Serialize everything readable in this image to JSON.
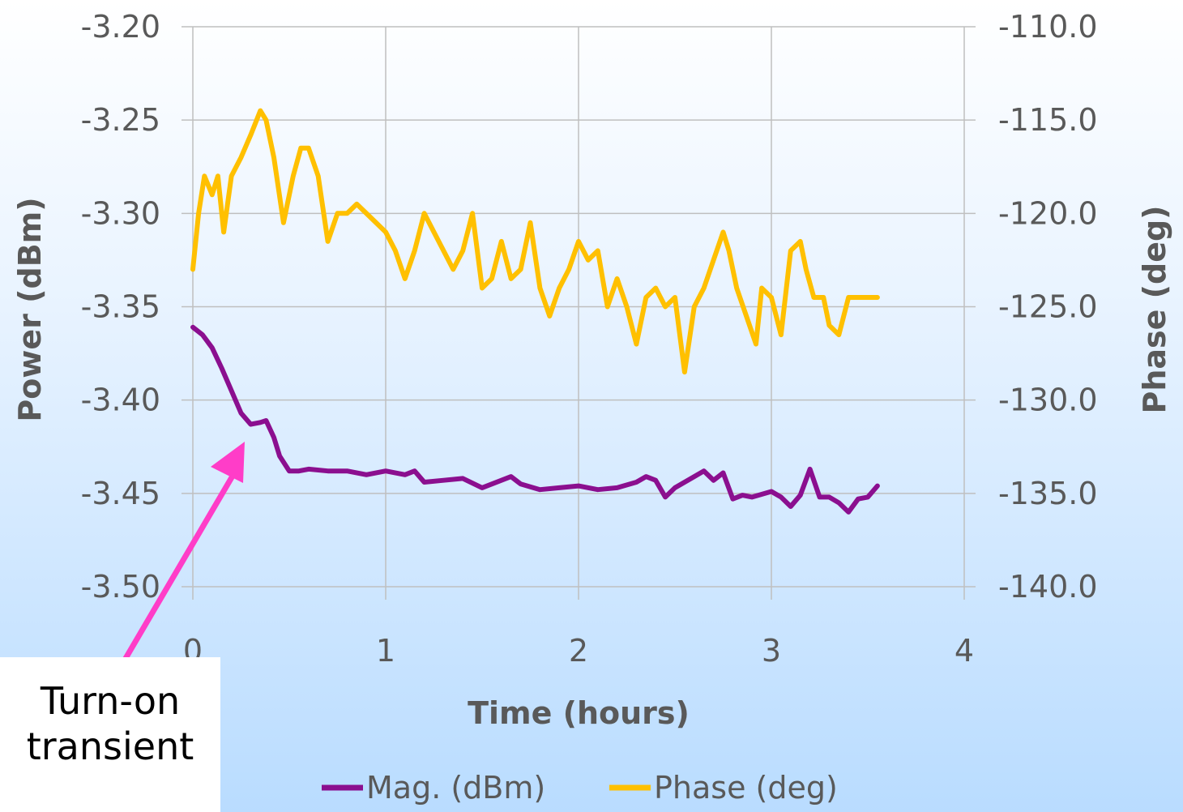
{
  "chart_data": {
    "type": "line",
    "xlabel": "Time (hours)",
    "ylabel_left": "Power (dBm)",
    "ylabel_right": "Phase (deg)",
    "xlim": [
      0,
      4
    ],
    "ylim_left": [
      -3.5,
      -3.2
    ],
    "ylim_right": [
      -140,
      -110
    ],
    "x_ticks": [
      "0",
      "1",
      "2",
      "3",
      "4"
    ],
    "y_left_ticks": [
      "-3.20",
      "-3.25",
      "-3.30",
      "-3.35",
      "-3.40",
      "-3.45",
      "-3.50"
    ],
    "y_right_ticks": [
      "-110.0",
      "-115.0",
      "-120.0",
      "-125.0",
      "-130.0",
      "-135.0",
      "-140.0"
    ],
    "grid": true,
    "legend_position": "bottom",
    "series": [
      {
        "name": "Mag. (dBm)",
        "axis": "left",
        "color": "#8b0f8f",
        "x": [
          0,
          0.05,
          0.1,
          0.15,
          0.2,
          0.25,
          0.3,
          0.35,
          0.38,
          0.42,
          0.45,
          0.5,
          0.55,
          0.6,
          0.7,
          0.8,
          0.9,
          1.0,
          1.1,
          1.15,
          1.2,
          1.3,
          1.4,
          1.5,
          1.6,
          1.65,
          1.7,
          1.8,
          1.9,
          2.0,
          2.1,
          2.2,
          2.3,
          2.35,
          2.4,
          2.45,
          2.5,
          2.6,
          2.65,
          2.7,
          2.75,
          2.8,
          2.85,
          2.9,
          3.0,
          3.05,
          3.1,
          3.15,
          3.2,
          3.25,
          3.3,
          3.35,
          3.4,
          3.45,
          3.5,
          3.55
        ],
        "values": [
          -3.361,
          -3.365,
          -3.372,
          -3.383,
          -3.395,
          -3.407,
          -3.413,
          -3.412,
          -3.411,
          -3.42,
          -3.43,
          -3.438,
          -3.438,
          -3.437,
          -3.438,
          -3.438,
          -3.44,
          -3.438,
          -3.44,
          -3.438,
          -3.444,
          -3.443,
          -3.442,
          -3.447,
          -3.443,
          -3.441,
          -3.445,
          -3.448,
          -3.447,
          -3.446,
          -3.448,
          -3.447,
          -3.444,
          -3.441,
          -3.443,
          -3.452,
          -3.447,
          -3.441,
          -3.438,
          -3.443,
          -3.439,
          -3.453,
          -3.451,
          -3.452,
          -3.449,
          -3.452,
          -3.457,
          -3.451,
          -3.437,
          -3.452,
          -3.452,
          -3.455,
          -3.46,
          -3.453,
          -3.452,
          -3.446
        ]
      },
      {
        "name": "Phase (deg)",
        "axis": "right",
        "color": "#ffc000",
        "x": [
          0,
          0.03,
          0.06,
          0.1,
          0.13,
          0.16,
          0.2,
          0.25,
          0.3,
          0.35,
          0.38,
          0.42,
          0.47,
          0.52,
          0.56,
          0.6,
          0.65,
          0.7,
          0.75,
          0.8,
          0.85,
          0.9,
          0.95,
          1.0,
          1.05,
          1.1,
          1.15,
          1.2,
          1.25,
          1.3,
          1.35,
          1.4,
          1.45,
          1.5,
          1.55,
          1.6,
          1.65,
          1.7,
          1.75,
          1.8,
          1.85,
          1.9,
          1.95,
          2.0,
          2.05,
          2.1,
          2.15,
          2.2,
          2.25,
          2.3,
          2.35,
          2.4,
          2.45,
          2.5,
          2.55,
          2.6,
          2.65,
          2.7,
          2.75,
          2.78,
          2.82,
          2.87,
          2.92,
          2.95,
          3.0,
          3.05,
          3.1,
          3.15,
          3.18,
          3.22,
          3.27,
          3.3,
          3.35,
          3.4,
          3.45,
          3.5,
          3.55
        ],
        "values": [
          -123,
          -120,
          -118,
          -119,
          -118,
          -121,
          -118,
          -117,
          -115.8,
          -114.5,
          -115,
          -117,
          -120.5,
          -118,
          -116.5,
          -116.5,
          -118,
          -121.5,
          -120,
          -120,
          -119.5,
          -120,
          -120.5,
          -121,
          -122,
          -123.5,
          -122,
          -120,
          -121,
          -122,
          -123,
          -122,
          -120,
          -124,
          -123.5,
          -121.5,
          -123.5,
          -123,
          -120.5,
          -124,
          -125.5,
          -124,
          -123,
          -121.5,
          -122.5,
          -122,
          -125,
          -123.5,
          -125,
          -127,
          -124.5,
          -124,
          -125,
          -124.5,
          -128.5,
          -125,
          -124,
          -122.5,
          -121,
          -122,
          -124,
          -125.5,
          -127,
          -124,
          -124.5,
          -126.5,
          -122,
          -121.5,
          -123,
          -124.5,
          -124.5,
          -126,
          -126.5,
          -124.5,
          -124.5,
          -124.5,
          -124.5
        ]
      }
    ]
  },
  "annotation": {
    "line1": "Turn-on",
    "line2": "transient",
    "arrow_color": "#ff3dc8"
  }
}
